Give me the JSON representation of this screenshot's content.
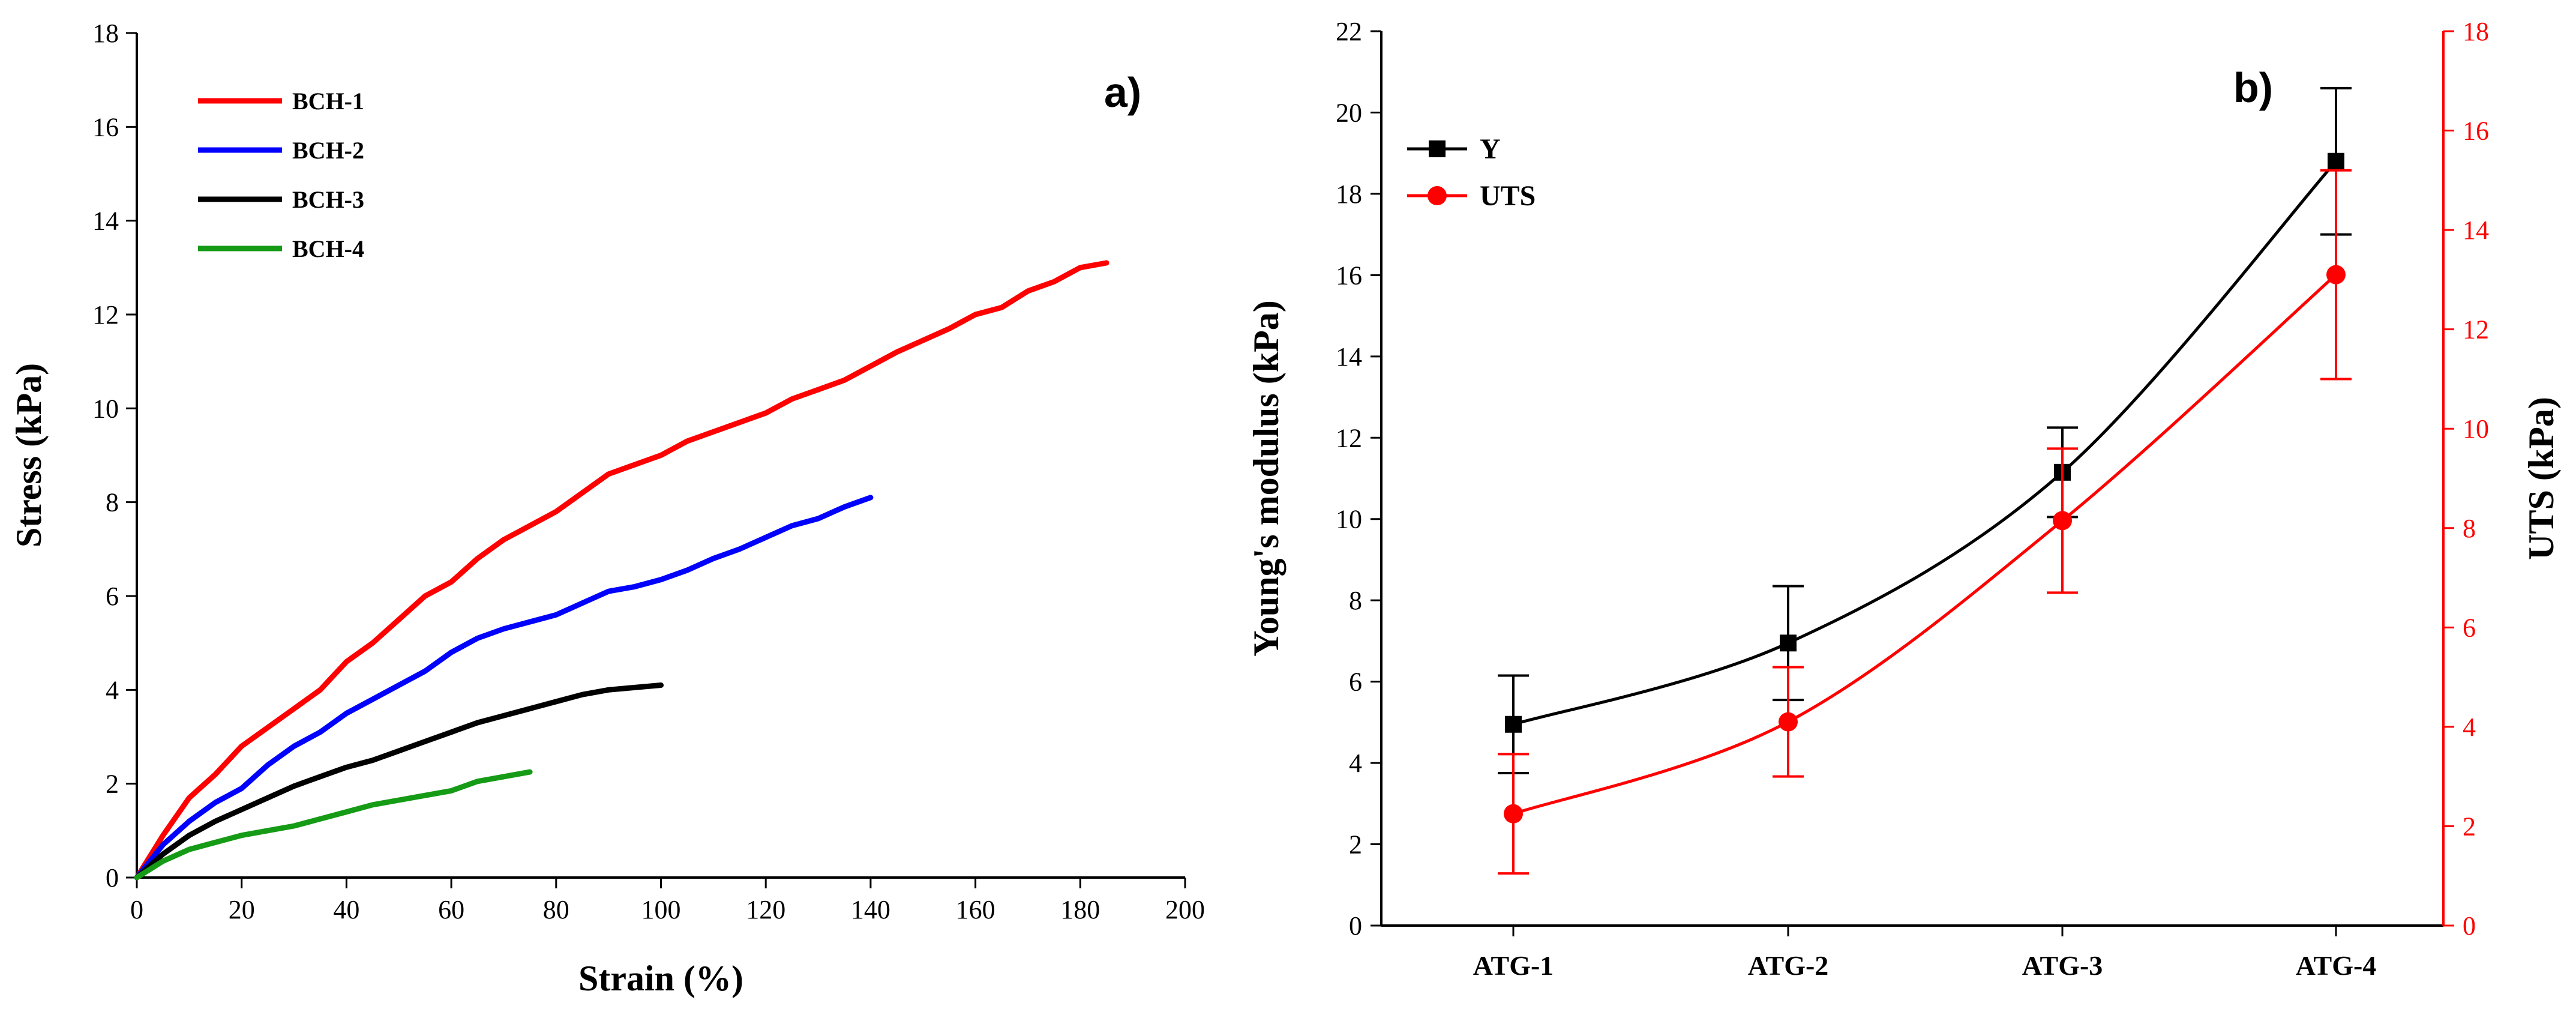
{
  "chart_data": [
    {
      "type": "line",
      "panel_label": "a)",
      "xlabel": "Strain (%)",
      "ylabel": "Stress (kPa)",
      "xlim": [
        0,
        200
      ],
      "ylim": [
        0,
        18
      ],
      "xticks": [
        0,
        20,
        40,
        60,
        80,
        100,
        120,
        140,
        160,
        180,
        200
      ],
      "yticks": [
        0,
        2,
        4,
        6,
        8,
        10,
        12,
        14,
        16,
        18
      ],
      "legend_position": "top-left",
      "series": [
        {
          "name": "BCH-1",
          "color": "#ff0000",
          "x": [
            0,
            5,
            10,
            15,
            20,
            25,
            30,
            35,
            40,
            45,
            50,
            55,
            60,
            65,
            70,
            75,
            80,
            85,
            90,
            95,
            100,
            105,
            110,
            115,
            120,
            125,
            130,
            135,
            140,
            145,
            150,
            155,
            160,
            165,
            170,
            175,
            180,
            185
          ],
          "y": [
            0,
            0.9,
            1.7,
            2.2,
            2.8,
            3.2,
            3.6,
            4.0,
            4.6,
            5.0,
            5.5,
            6.0,
            6.3,
            6.8,
            7.2,
            7.5,
            7.8,
            8.2,
            8.6,
            8.8,
            9.0,
            9.3,
            9.5,
            9.7,
            9.9,
            10.2,
            10.4,
            10.6,
            10.9,
            11.2,
            11.45,
            11.7,
            12.0,
            12.15,
            12.5,
            12.7,
            13.0,
            13.1
          ]
        },
        {
          "name": "BCH-2",
          "color": "#0000ff",
          "x": [
            0,
            5,
            10,
            15,
            20,
            25,
            30,
            35,
            40,
            45,
            50,
            55,
            60,
            65,
            70,
            75,
            80,
            85,
            90,
            95,
            100,
            105,
            110,
            115,
            120,
            125,
            130,
            135,
            140
          ],
          "y": [
            0,
            0.7,
            1.2,
            1.6,
            1.9,
            2.4,
            2.8,
            3.1,
            3.5,
            3.8,
            4.1,
            4.4,
            4.8,
            5.1,
            5.3,
            5.45,
            5.6,
            5.85,
            6.1,
            6.2,
            6.35,
            6.55,
            6.8,
            7.0,
            7.25,
            7.5,
            7.65,
            7.9,
            8.1
          ]
        },
        {
          "name": "BCH-3",
          "color": "#000000",
          "x": [
            0,
            5,
            10,
            15,
            20,
            25,
            30,
            35,
            40,
            45,
            50,
            55,
            60,
            65,
            70,
            75,
            80,
            85,
            90,
            95,
            100
          ],
          "y": [
            0,
            0.5,
            0.9,
            1.2,
            1.45,
            1.7,
            1.95,
            2.15,
            2.35,
            2.5,
            2.7,
            2.9,
            3.1,
            3.3,
            3.45,
            3.6,
            3.75,
            3.9,
            4.0,
            4.05,
            4.1
          ]
        },
        {
          "name": "BCH-4",
          "color": "#169b16",
          "x": [
            0,
            5,
            10,
            15,
            20,
            25,
            30,
            35,
            40,
            45,
            50,
            55,
            60,
            65,
            70,
            75
          ],
          "y": [
            0,
            0.35,
            0.6,
            0.75,
            0.9,
            1.0,
            1.1,
            1.25,
            1.4,
            1.55,
            1.65,
            1.75,
            1.85,
            2.05,
            2.15,
            2.25
          ]
        }
      ]
    },
    {
      "type": "line",
      "panel_label": "b)",
      "categories": [
        "ATG-1",
        "ATG-2",
        "ATG-3",
        "ATG-4"
      ],
      "ylabel_left": "Young's modulus (kPa)",
      "ylabel_right": "UTS (kPa)",
      "ylim_left": [
        0,
        22
      ],
      "ylim_right": [
        0,
        18
      ],
      "yticks_left": [
        0,
        2,
        4,
        6,
        8,
        10,
        12,
        14,
        16,
        18,
        20,
        22
      ],
      "yticks_right": [
        0,
        2,
        4,
        6,
        8,
        10,
        12,
        14,
        16,
        18
      ],
      "legend_position": "top-left",
      "series": [
        {
          "name": "Y",
          "axis": "left",
          "color": "#000000",
          "marker": "square",
          "values": [
            4.95,
            6.95,
            11.15,
            18.8
          ],
          "error": [
            1.2,
            1.4,
            1.1,
            1.8
          ]
        },
        {
          "name": "UTS",
          "axis": "right",
          "color": "#ff0000",
          "marker": "circle",
          "values": [
            2.25,
            4.1,
            8.15,
            13.1
          ],
          "error": [
            1.2,
            1.1,
            1.45,
            2.1
          ]
        }
      ]
    }
  ]
}
